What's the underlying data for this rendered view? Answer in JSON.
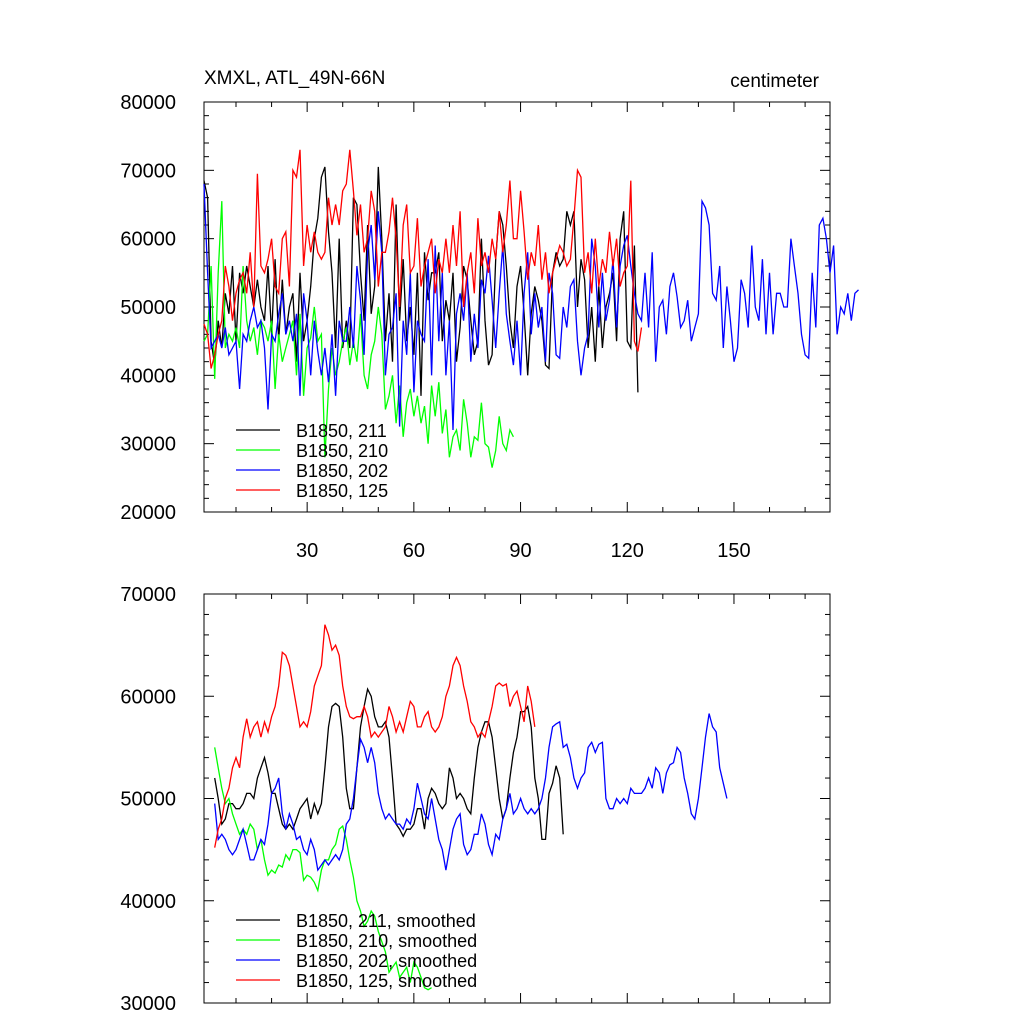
{
  "chart_data": [
    {
      "type": "line",
      "title": "XMXL, ATL_49N-66N",
      "units": "centimeter",
      "xlim": [
        1,
        177
      ],
      "ylim": [
        20000,
        80000
      ],
      "xticks": [
        30,
        60,
        90,
        120,
        150
      ],
      "yticks": [
        20000,
        30000,
        40000,
        50000,
        60000,
        70000,
        80000
      ],
      "legend_position": "bottom-left",
      "series": [
        {
          "name": "B1850, 211",
          "color": "#000000",
          "x_start": 1,
          "values": [
            68500,
            66000,
            45000,
            41500,
            48000,
            44000,
            52000,
            49000,
            56000,
            45000,
            55000,
            52000,
            56000,
            53000,
            50000,
            54000,
            50000,
            48000,
            56000,
            46000,
            57000,
            45000,
            54000,
            46000,
            50000,
            52000,
            42000,
            55000,
            45000,
            48000,
            53000,
            60000,
            63000,
            69000,
            70500,
            61000,
            55000,
            44000,
            60000,
            44000,
            48000,
            44000,
            66000,
            65000,
            55000,
            48000,
            62000,
            49000,
            53000,
            70500,
            60000,
            45000,
            52000,
            42000,
            65000,
            48000,
            57000,
            45000,
            50000,
            43000,
            55000,
            37000,
            58000,
            51000,
            55000,
            55000,
            58000,
            45000,
            51000,
            48000,
            55000,
            42000,
            47000,
            56000,
            54000,
            48000,
            43000,
            45000,
            60000,
            48000,
            41500,
            43000,
            57000,
            64000,
            62000,
            56000,
            48000,
            44000,
            53000,
            56000,
            49000,
            40000,
            49000,
            53000,
            51000,
            48000,
            41500,
            41000,
            55000,
            58000,
            56000,
            57000,
            64000,
            62000,
            64000,
            50000,
            57000,
            54000,
            44000,
            50000,
            42000,
            53000,
            44000,
            50000,
            52000,
            55000,
            45000,
            60000,
            64000,
            45000,
            44000,
            59000,
            37500
          ]
        },
        {
          "name": "B1850, 210",
          "color": "#00ff00",
          "x_start": 1,
          "values": [
            45000,
            46000,
            56000,
            39500,
            55000,
            65500,
            44000,
            46000,
            45000,
            47000,
            44000,
            56000,
            48000,
            45000,
            47000,
            43000,
            48000,
            47000,
            45000,
            48000,
            38000,
            46000,
            42000,
            44000,
            46000,
            48000,
            40000,
            49000,
            37000,
            44000,
            45500,
            50000,
            45000,
            46000,
            28000,
            38000,
            44000,
            40000,
            42000,
            45000,
            47000,
            41500,
            45000,
            42000,
            49000,
            40000,
            38000,
            43000,
            45000,
            50000,
            46000,
            35000,
            37000,
            40000,
            33000,
            38500,
            31000,
            36000,
            38000,
            34000,
            37000,
            33000,
            35500,
            30000,
            38500,
            34000,
            39000,
            31500,
            35000,
            28000,
            31000,
            32000,
            29000,
            36500,
            33000,
            28000,
            31000,
            30500,
            36000,
            30000,
            29500,
            26500,
            29000,
            34000,
            30000,
            29000,
            32000,
            31000
          ]
        },
        {
          "name": "B1850, 202",
          "color": "#0000ff",
          "x_start": 1,
          "values": [
            68000,
            55000,
            44000,
            45000,
            46000,
            44000,
            47000,
            43000,
            44000,
            45000,
            38000,
            46000,
            45000,
            48000,
            50000,
            47000,
            48000,
            44000,
            35000,
            46000,
            45000,
            49000,
            52000,
            46000,
            48000,
            45000,
            49000,
            37000,
            52000,
            48000,
            40000,
            48000,
            43500,
            40000,
            44000,
            39000,
            46000,
            37000,
            48000,
            45000,
            45000,
            50000,
            44000,
            56000,
            51000,
            43000,
            58000,
            62000,
            54000,
            64000,
            58000,
            40000,
            46000,
            47000,
            52000,
            32500,
            48000,
            43000,
            55000,
            37500,
            48000,
            46000,
            45000,
            57000,
            40000,
            59000,
            45000,
            55000,
            40000,
            48000,
            32000,
            49000,
            52000,
            48000,
            55000,
            42000,
            49000,
            44000,
            54000,
            52000,
            57500,
            51000,
            44000,
            52000,
            59000,
            49000,
            45000,
            41500,
            48000,
            40000,
            52000,
            58000,
            46000,
            52000,
            47000,
            50000,
            42000,
            55000,
            52000,
            43000,
            42500,
            50000,
            47000,
            53000,
            54000,
            45000,
            40000,
            44000,
            46000,
            60000,
            56000,
            47000,
            55000,
            48000,
            51000,
            57000,
            47000,
            56000,
            59000,
            60500,
            56000,
            52000,
            49000,
            48000,
            55000,
            47000,
            58000,
            42000,
            50000,
            51000,
            46000,
            53000,
            55000,
            51500,
            47000,
            48000,
            51000,
            45000,
            47000,
            49000,
            65500,
            64500,
            62000,
            52000,
            51000,
            56000,
            44000,
            53000,
            48000,
            42000,
            44000,
            54000,
            52000,
            47000,
            59000,
            50000,
            48000,
            57000,
            46000,
            55000,
            46000,
            52000,
            52000,
            50000,
            50000,
            60000,
            56000,
            52000,
            46000,
            43000,
            42500,
            55000,
            47000,
            62000,
            63000,
            60000,
            55000,
            59000,
            46000,
            50000,
            49000,
            52000,
            48000,
            52000,
            52500
          ]
        },
        {
          "name": "B1850, 125",
          "color": "#ff0000",
          "x_start": 1,
          "values": [
            47500,
            46000,
            41000,
            43000,
            46000,
            48000,
            56000,
            53000,
            48000,
            52000,
            54000,
            55000,
            52000,
            58000,
            50000,
            69500,
            56000,
            55000,
            57000,
            60000,
            53000,
            52000,
            60000,
            61000,
            53000,
            70000,
            69000,
            73000,
            56000,
            62000,
            58000,
            61000,
            58000,
            57000,
            58000,
            66000,
            62000,
            65000,
            62000,
            67000,
            68000,
            73000,
            67000,
            60500,
            65000,
            58000,
            60000,
            67000,
            64000,
            53000,
            58000,
            58000,
            61000,
            66000,
            60000,
            50000,
            62000,
            65000,
            55000,
            56000,
            63000,
            53000,
            56000,
            58000,
            60000,
            52000,
            57000,
            55000,
            60000,
            55000,
            62000,
            56000,
            64000,
            50000,
            55000,
            58000,
            52000,
            63000,
            56000,
            58000,
            55000,
            60000,
            57000,
            64000,
            58000,
            62000,
            68500,
            60000,
            60000,
            67000,
            61000,
            54000,
            58000,
            56000,
            62000,
            54000,
            58000,
            52000,
            55000,
            57000,
            59000,
            58000,
            56000,
            57000,
            63000,
            70000,
            69000,
            55000,
            58000,
            52000,
            60000,
            53000,
            57000,
            55000,
            61000,
            56000,
            60000,
            53000,
            55000,
            56000,
            68500,
            45000,
            43500,
            47000
          ]
        }
      ]
    },
    {
      "type": "line",
      "title": "",
      "xlim": [
        1,
        177
      ],
      "ylim": [
        30000,
        70000
      ],
      "xticks": [
        30,
        60,
        90,
        120,
        150
      ],
      "yticks": [
        30000,
        40000,
        50000,
        60000,
        70000
      ],
      "legend_position": "bottom-left",
      "series": [
        {
          "name": "B1850, 211, smoothed",
          "color": "#000000",
          "x_start": 4,
          "values": [
            52000,
            50000,
            47500,
            48000,
            49500,
            49500,
            49000,
            49000,
            49500,
            50500,
            50500,
            50000,
            52000,
            53000,
            54000,
            52500,
            50500,
            50500,
            49000,
            47500,
            47000,
            47500,
            47000,
            48000,
            49000,
            49500,
            50000,
            48000,
            49500,
            48500,
            49500,
            53000,
            57000,
            59000,
            59300,
            59000,
            56000,
            51000,
            49000,
            49000,
            53000,
            57000,
            59000,
            60700,
            60000,
            58000,
            57000,
            57000,
            57500,
            56000,
            52000,
            47500,
            47000,
            46300,
            47000,
            47000,
            47500,
            49000,
            49000,
            47000,
            50000,
            51000,
            50500,
            49500,
            49000,
            49500,
            53000,
            52000,
            50000,
            50500,
            50000,
            49000,
            48500,
            52000,
            55000,
            56500,
            57500,
            57500,
            56000,
            53000,
            50000,
            48000,
            49000,
            52000,
            54500,
            56000,
            58500,
            58500,
            59000,
            57000,
            52000,
            50000,
            46000,
            46000,
            50500,
            51500,
            53200,
            52000,
            46500
          ]
        },
        {
          "name": "B1850, 210, smoothed",
          "color": "#00ff00",
          "x_start": 4,
          "values": [
            55000,
            53000,
            51000,
            49500,
            50000,
            48500,
            47500,
            46500,
            47000,
            46500,
            47500,
            47000,
            45000,
            46000,
            44000,
            42500,
            43000,
            42700,
            43500,
            43300,
            44500,
            44000,
            45000,
            45000,
            44700,
            42000,
            42500,
            42300,
            41800,
            41000,
            43000,
            44000,
            44000,
            45000,
            45500,
            47000,
            47300,
            46000,
            44000,
            42300,
            40000,
            39000,
            37500,
            38000,
            39000,
            38500,
            37000,
            36000,
            35000,
            33000,
            33500,
            34000,
            32500,
            33000,
            33500,
            32000,
            34000,
            33500,
            32500,
            31500,
            31300,
            31500
          ]
        },
        {
          "name": "B1850, 202, smoothed",
          "color": "#0000ff",
          "x_start": 4,
          "values": [
            49500,
            46000,
            46500,
            46000,
            45000,
            44500,
            45000,
            46000,
            47000,
            45500,
            44000,
            44000,
            45000,
            46000,
            45500,
            47500,
            50500,
            51000,
            52000,
            48500,
            47000,
            48500,
            47500,
            46000,
            46300,
            45000,
            44500,
            46000,
            45000,
            43000,
            43500,
            44000,
            43500,
            44000,
            44500,
            44000,
            45000,
            47500,
            48000,
            50000,
            53000,
            55800,
            55000,
            53500,
            55000,
            53500,
            50500,
            49000,
            48000,
            48500,
            48000,
            47500,
            47500,
            47000,
            48000,
            47500,
            49000,
            51500,
            50000,
            48500,
            48000,
            50000,
            48000,
            46000,
            45000,
            43000,
            45000,
            47000,
            48000,
            48500,
            45500,
            44500,
            45000,
            46500,
            46500,
            48500,
            47500,
            45500,
            44500,
            46500,
            46000,
            48000,
            49000,
            50500,
            48500,
            49000,
            50000,
            49000,
            48500,
            49000,
            48500,
            49000,
            50000,
            52000,
            55000,
            57000,
            57300,
            57500,
            55000,
            55300,
            54000,
            52000,
            51000,
            52000,
            52500,
            55000,
            55500,
            54500,
            55300,
            55500,
            50000,
            49000,
            49000,
            50000,
            49500,
            50000,
            49500,
            51000,
            50500,
            50500,
            50500,
            51000,
            52000,
            51000,
            53000,
            52500,
            50500,
            52500,
            53300,
            53500,
            55000,
            54500,
            52000,
            50500,
            48500,
            48000,
            50000,
            53000,
            56000,
            58300,
            57000,
            56500,
            53000,
            51500,
            50000
          ]
        },
        {
          "name": "B1850, 125, smoothed",
          "color": "#ff0000",
          "x_start": 4,
          "values": [
            45200,
            47000,
            48000,
            50000,
            51000,
            53000,
            54000,
            53000,
            56000,
            57800,
            56000,
            57000,
            57500,
            56000,
            57500,
            56500,
            58000,
            59000,
            61000,
            64300,
            64000,
            63000,
            61000,
            59000,
            57000,
            57500,
            57000,
            58500,
            61000,
            62000,
            63000,
            67000,
            66000,
            64500,
            65000,
            64000,
            61000,
            59000,
            58000,
            57800,
            58000,
            58000,
            59000,
            58000,
            56000,
            56500,
            56000,
            56500,
            57000,
            59000,
            58000,
            56500,
            57500,
            56500,
            58000,
            59500,
            59000,
            57000,
            57000,
            58000,
            58500,
            57000,
            56500,
            57000,
            58000,
            60000,
            61000,
            63000,
            63800,
            63000,
            61000,
            59500,
            57500,
            57000,
            56000,
            56500,
            56000,
            57500,
            59000,
            61000,
            61300,
            61000,
            61200,
            59000,
            60000,
            60500,
            59000,
            57500,
            61000,
            59500,
            57000
          ]
        }
      ]
    }
  ]
}
